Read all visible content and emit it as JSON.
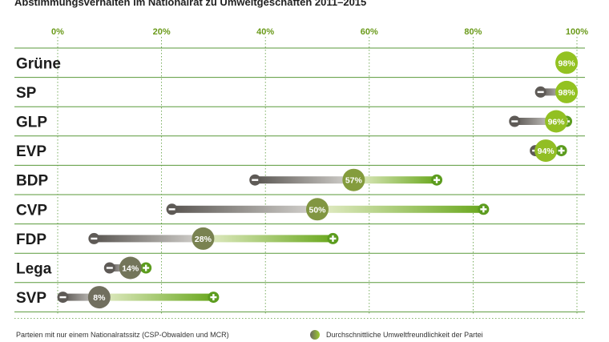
{
  "chart_data": {
    "type": "range",
    "title": "Abstimmungsverhalten im Nationalrat zu Umweltgeschäften 2011–2015",
    "xlim": [
      0,
      100
    ],
    "ticks": [
      "0%",
      "20%",
      "40%",
      "60%",
      "80%",
      "100%"
    ],
    "tick_values": [
      0,
      20,
      40,
      60,
      80,
      100
    ],
    "grid": true,
    "parties": [
      {
        "name": "Grüne",
        "min": 98,
        "avg": 98,
        "max": 99,
        "avg_label": "98%"
      },
      {
        "name": "SP",
        "min": 93,
        "avg": 98,
        "max": 99,
        "avg_label": "98%"
      },
      {
        "name": "GLP",
        "min": 88,
        "avg": 96,
        "max": 98,
        "avg_label": "96%"
      },
      {
        "name": "EVP",
        "min": 92,
        "avg": 94,
        "max": 97,
        "avg_label": "94%"
      },
      {
        "name": "BDP",
        "min": 38,
        "avg": 57,
        "max": 73,
        "avg_label": "57%"
      },
      {
        "name": "CVP",
        "min": 22,
        "avg": 50,
        "max": 82,
        "avg_label": "50%"
      },
      {
        "name": "FDP",
        "min": 7,
        "avg": 28,
        "max": 53,
        "avg_label": "28%"
      },
      {
        "name": "Lega",
        "min": 10,
        "avg": 14,
        "max": 17,
        "avg_label": "14%"
      },
      {
        "name": "SVP",
        "min": 1,
        "avg": 8,
        "max": 30,
        "avg_label": "8%"
      }
    ],
    "colors": {
      "minus": "#5e5a56",
      "plus": "#5c9c1e",
      "grid": "#5a9a3a"
    }
  },
  "footnotes": {
    "left": "Parteien mit nur einem Nationalratssitz (CSP-Obwalden und MCR)",
    "legend": "Durchschnittliche Umweltfreundlichkeit der Partei"
  }
}
